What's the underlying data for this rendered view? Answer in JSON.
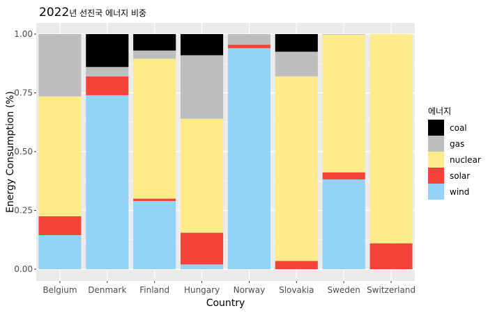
{
  "chart_data": {
    "type": "bar",
    "stacked": true,
    "title": "2022년 선진국 에너지 비중",
    "xlabel": "Country",
    "ylabel": "Energy Consumption (%)",
    "ylim": [
      0,
      1
    ],
    "yticks": [
      "0.00",
      "0.25",
      "0.50",
      "0.75",
      "1.00"
    ],
    "grid": true,
    "legend_title": "에너지",
    "legend_position": "right",
    "categories": [
      "Belgium",
      "Denmark",
      "Finland",
      "Hungary",
      "Norway",
      "Slovakia",
      "Sweden",
      "Switzerland"
    ],
    "series": [
      {
        "name": "coal",
        "color": "#000000",
        "values": [
          0.0,
          0.14,
          0.07,
          0.09,
          0.0,
          0.075,
          0.0,
          0.0
        ]
      },
      {
        "name": "gas",
        "color": "#bebebe",
        "values": [
          0.265,
          0.04,
          0.035,
          0.27,
          0.045,
          0.105,
          0.003,
          0.0
        ]
      },
      {
        "name": "nuclear",
        "color": "#fdeb89",
        "values": [
          0.51,
          0.0,
          0.595,
          0.485,
          0.0,
          0.785,
          0.585,
          0.89
        ]
      },
      {
        "name": "solar",
        "color": "#f4433a",
        "values": [
          0.08,
          0.08,
          0.01,
          0.135,
          0.015,
          0.035,
          0.03,
          0.11
        ]
      },
      {
        "name": "wind",
        "color": "#94d3f6",
        "values": [
          0.145,
          0.74,
          0.29,
          0.02,
          0.94,
          0.0,
          0.382,
          0.0
        ]
      }
    ]
  }
}
